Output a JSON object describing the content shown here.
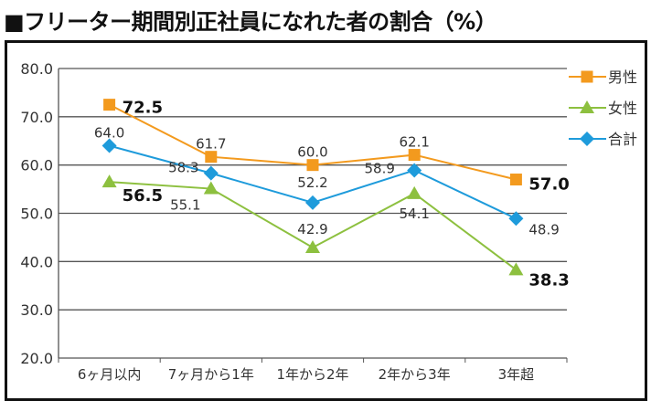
{
  "title": "■フリーター期間別正社員になれた者の割合（%）",
  "chart_data": {
    "type": "line",
    "categories": [
      "6ヶ月以内",
      "7ヶ月から1年",
      "1年から2年",
      "2年から3年",
      "3年超"
    ],
    "ylim": [
      20,
      80
    ],
    "yticks": [
      "20.0",
      "30.0",
      "40.0",
      "50.0",
      "60.0",
      "70.0",
      "80.0"
    ],
    "grid": true,
    "legend_position": "top-right",
    "series": [
      {
        "name": "男性",
        "marker": "square",
        "color": "#F39A1E",
        "values": [
          72.5,
          61.7,
          60.0,
          62.1,
          57.0
        ],
        "labels": [
          "72.5",
          "61.7",
          "60.0",
          "62.1",
          "57.0"
        ]
      },
      {
        "name": "女性",
        "marker": "triangle",
        "color": "#8DC03F",
        "values": [
          56.5,
          55.1,
          42.9,
          54.1,
          38.3
        ],
        "labels": [
          "56.5",
          "55.1",
          "42.9",
          "54.1",
          "38.3"
        ]
      },
      {
        "name": "合計",
        "marker": "diamond",
        "color": "#1E9BDB",
        "values": [
          64.0,
          58.3,
          52.2,
          58.9,
          48.9
        ],
        "labels": [
          "64.0",
          "58.3",
          "52.2",
          "58.9",
          "48.9"
        ]
      }
    ]
  }
}
